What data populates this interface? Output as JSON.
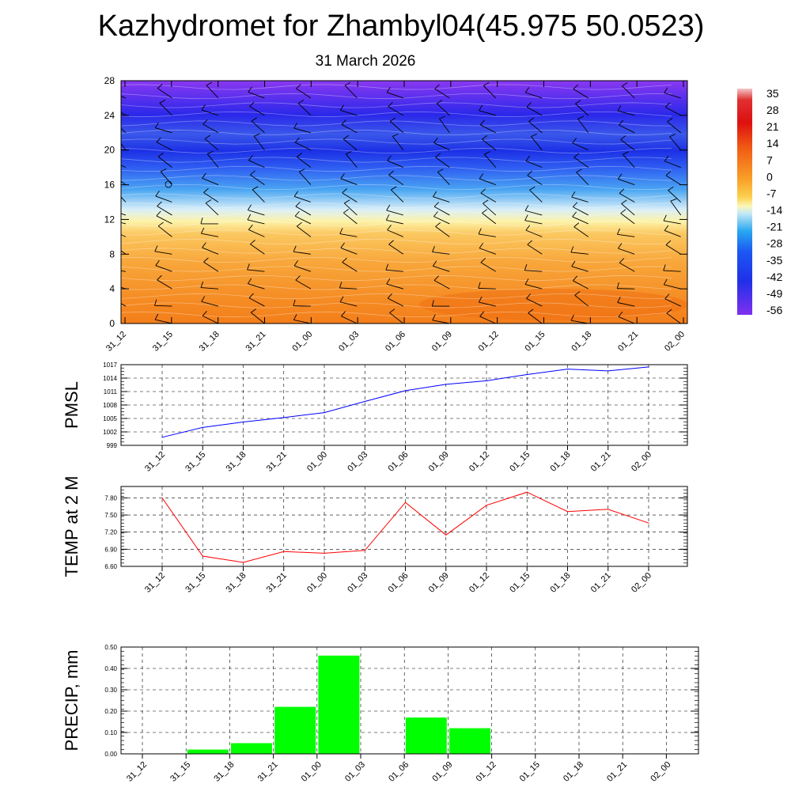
{
  "header": {
    "title": "Kazhydromet for Zhambyl04(45.975 50.0523)",
    "subtitle": "31 March 2026"
  },
  "chart_data": [
    {
      "type": "heatmap",
      "name": "temperature-height cross-section",
      "x_ticks": [
        "31_12",
        "31_15",
        "31_18",
        "31_21",
        "01_00",
        "01_03",
        "01_06",
        "01_09",
        "01_12",
        "01_15",
        "01_18",
        "01_21",
        "02_00"
      ],
      "y_ticks": [
        "0",
        "4",
        "8",
        "12",
        "16",
        "20",
        "24",
        "28"
      ],
      "ylim": [
        0,
        28
      ],
      "colorbar_labels": [
        "35",
        "28",
        "21",
        "14",
        "7",
        "0",
        "-7",
        "-14",
        "-21",
        "-28",
        "-35",
        "-42",
        "-49",
        "-56"
      ],
      "colorbar_range": [
        -60,
        38
      ],
      "annotation": "wind barbs overlaid at each time step and level",
      "levels": [
        0,
        2,
        4,
        6,
        8,
        10,
        11.5,
        12.5,
        14,
        16,
        18,
        20,
        22,
        24,
        26,
        28
      ],
      "temperature_profile": [
        5,
        4,
        3,
        1,
        -2,
        -6,
        -11,
        -17,
        -24,
        -31,
        -36,
        -44,
        -52,
        -48,
        -57,
        -62
      ]
    },
    {
      "type": "line",
      "name": "PMSL",
      "ylabel": "PMSL",
      "categories": [
        "31_12",
        "31_15",
        "31_18",
        "31_21",
        "01_00",
        "01_03",
        "01_06",
        "01_09",
        "01_12",
        "01_15",
        "01_18",
        "01_21",
        "02_00"
      ],
      "values": [
        1000.8,
        1003.0,
        1004.2,
        1005.2,
        1006.3,
        1008.8,
        1011.2,
        1012.6,
        1013.4,
        1014.8,
        1016.0,
        1015.6,
        1016.5
      ],
      "yticks": [
        "999",
        "1002",
        "1005",
        "1008",
        "1011",
        "1014",
        "1017"
      ],
      "ylim": [
        999,
        1017
      ],
      "color": "#0000ff"
    },
    {
      "type": "line",
      "name": "TEMP at 2 M",
      "ylabel": "TEMP at 2 M",
      "categories": [
        "31_12",
        "31_15",
        "31_18",
        "31_21",
        "01_00",
        "01_03",
        "01_06",
        "01_09",
        "01_12",
        "01_15",
        "01_18",
        "01_21",
        "02_00"
      ],
      "values": [
        7.8,
        6.78,
        6.67,
        6.86,
        6.83,
        6.88,
        7.72,
        7.15,
        7.67,
        7.9,
        7.56,
        7.6,
        7.36
      ],
      "yticks": [
        "6.60",
        "6.90",
        "7.20",
        "7.50",
        "7.80"
      ],
      "ylim": [
        6.6,
        8.0
      ],
      "color": "#ff0000"
    },
    {
      "type": "bar",
      "name": "PRECIP, mm",
      "ylabel": "PRECIP, mm",
      "categories": [
        "31_12",
        "31_15",
        "31_18",
        "31_21",
        "01_00",
        "01_03",
        "01_06",
        "01_09",
        "01_12",
        "01_15",
        "01_18",
        "01_21",
        "02_00"
      ],
      "values": [
        0,
        0.02,
        0.05,
        0.22,
        0.46,
        0,
        0.17,
        0.12,
        0,
        0,
        0,
        0,
        0
      ],
      "yticks": [
        "0.00",
        "0.10",
        "0.20",
        "0.30",
        "0.40",
        "0.50"
      ],
      "ylim": [
        0,
        0.5
      ],
      "color": "#00ff00"
    }
  ]
}
